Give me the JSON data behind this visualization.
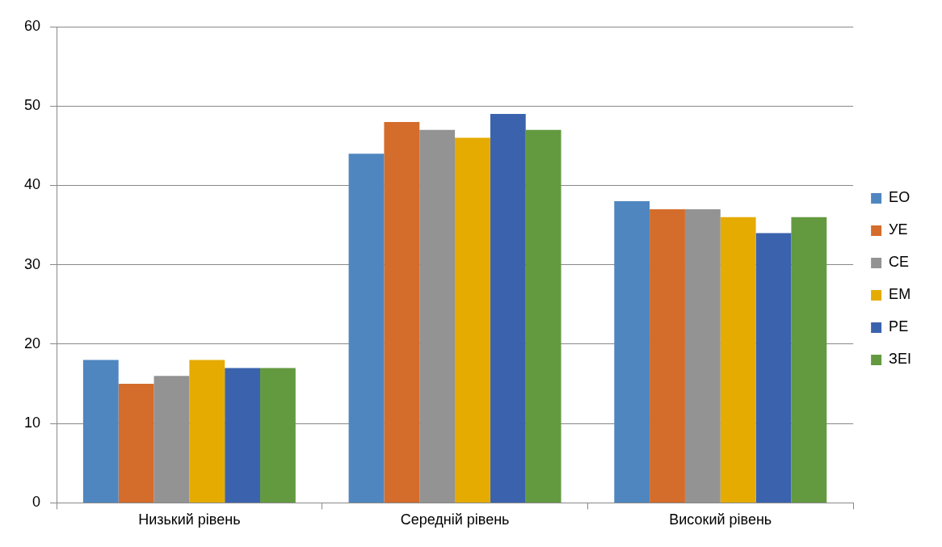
{
  "chart_data": {
    "type": "bar",
    "categories": [
      "Низький рівень",
      "Середній рівень",
      "Високий рівень"
    ],
    "series": [
      {
        "name": "ЕО",
        "color": "#4f86c0",
        "values": [
          18,
          44,
          38
        ]
      },
      {
        "name": "УЕ",
        "color": "#d46c2b",
        "values": [
          15,
          48,
          37
        ]
      },
      {
        "name": "СЕ",
        "color": "#939393",
        "values": [
          16,
          47,
          37
        ]
      },
      {
        "name": "ЕМ",
        "color": "#e5ab00",
        "values": [
          18,
          46,
          36
        ]
      },
      {
        "name": "РЕ",
        "color": "#3b63ad",
        "values": [
          17,
          49,
          34
        ]
      },
      {
        "name": "ЗЕІ",
        "color": "#639a3f",
        "values": [
          17,
          47,
          36
        ]
      }
    ],
    "ylim": [
      0,
      60
    ],
    "yticks": [
      0,
      10,
      20,
      30,
      40,
      50,
      60
    ],
    "grid": "y",
    "legend": "right"
  }
}
